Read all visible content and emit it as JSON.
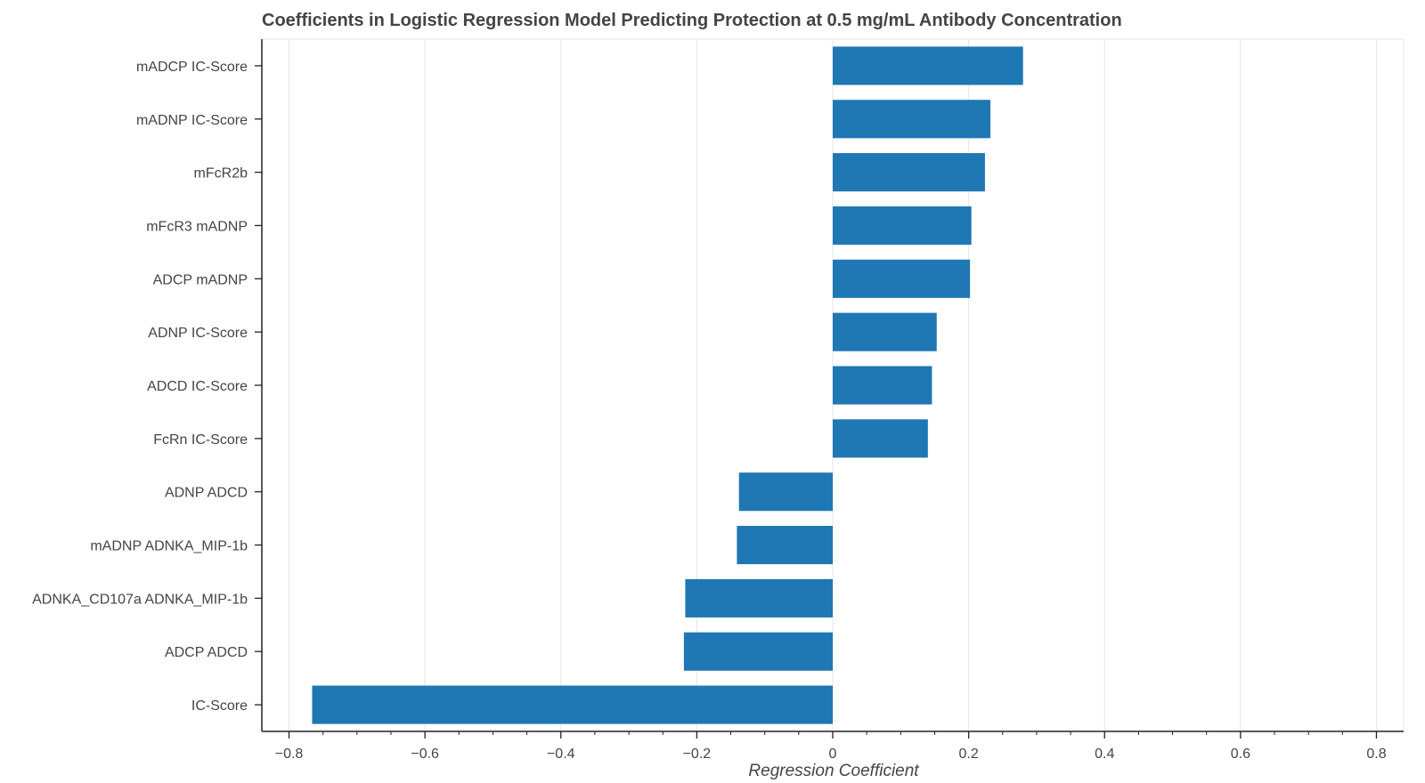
{
  "chart_data": {
    "type": "bar",
    "orientation": "horizontal",
    "title": "Coefficients in Logistic Regression Model Predicting Protection at 0.5 mg/mL Antibody Concentration",
    "xlabel": "Regression Coefficient",
    "ylabel": "",
    "xlim": [
      -0.84,
      0.84
    ],
    "x_ticks": [
      "−0.8",
      "−0.6",
      "−0.4",
      "−0.2",
      "0",
      "0.2",
      "0.4",
      "0.6",
      "0.8"
    ],
    "x_tick_values": [
      -0.8,
      -0.6,
      -0.4,
      -0.2,
      0,
      0.2,
      0.4,
      0.6,
      0.8
    ],
    "grid": "vertical",
    "bar_color": "#1f77b4",
    "categories": [
      "mADCP IC-Score",
      "mADNP IC-Score",
      "mFcR2b",
      "mFcR3 mADNP",
      "ADCP mADNP",
      "ADNP IC-Score",
      "ADCD IC-Score",
      "FcRn IC-Score",
      "ADNP ADCD",
      "mADNP ADNKA_MIP-1b",
      "ADNKA_CD107a ADNKA_MIP-1b",
      "ADCP ADCD",
      "IC-Score"
    ],
    "values": [
      0.28,
      0.232,
      0.224,
      0.204,
      0.202,
      0.153,
      0.146,
      0.14,
      -0.138,
      -0.141,
      -0.217,
      -0.219,
      -0.766
    ]
  }
}
